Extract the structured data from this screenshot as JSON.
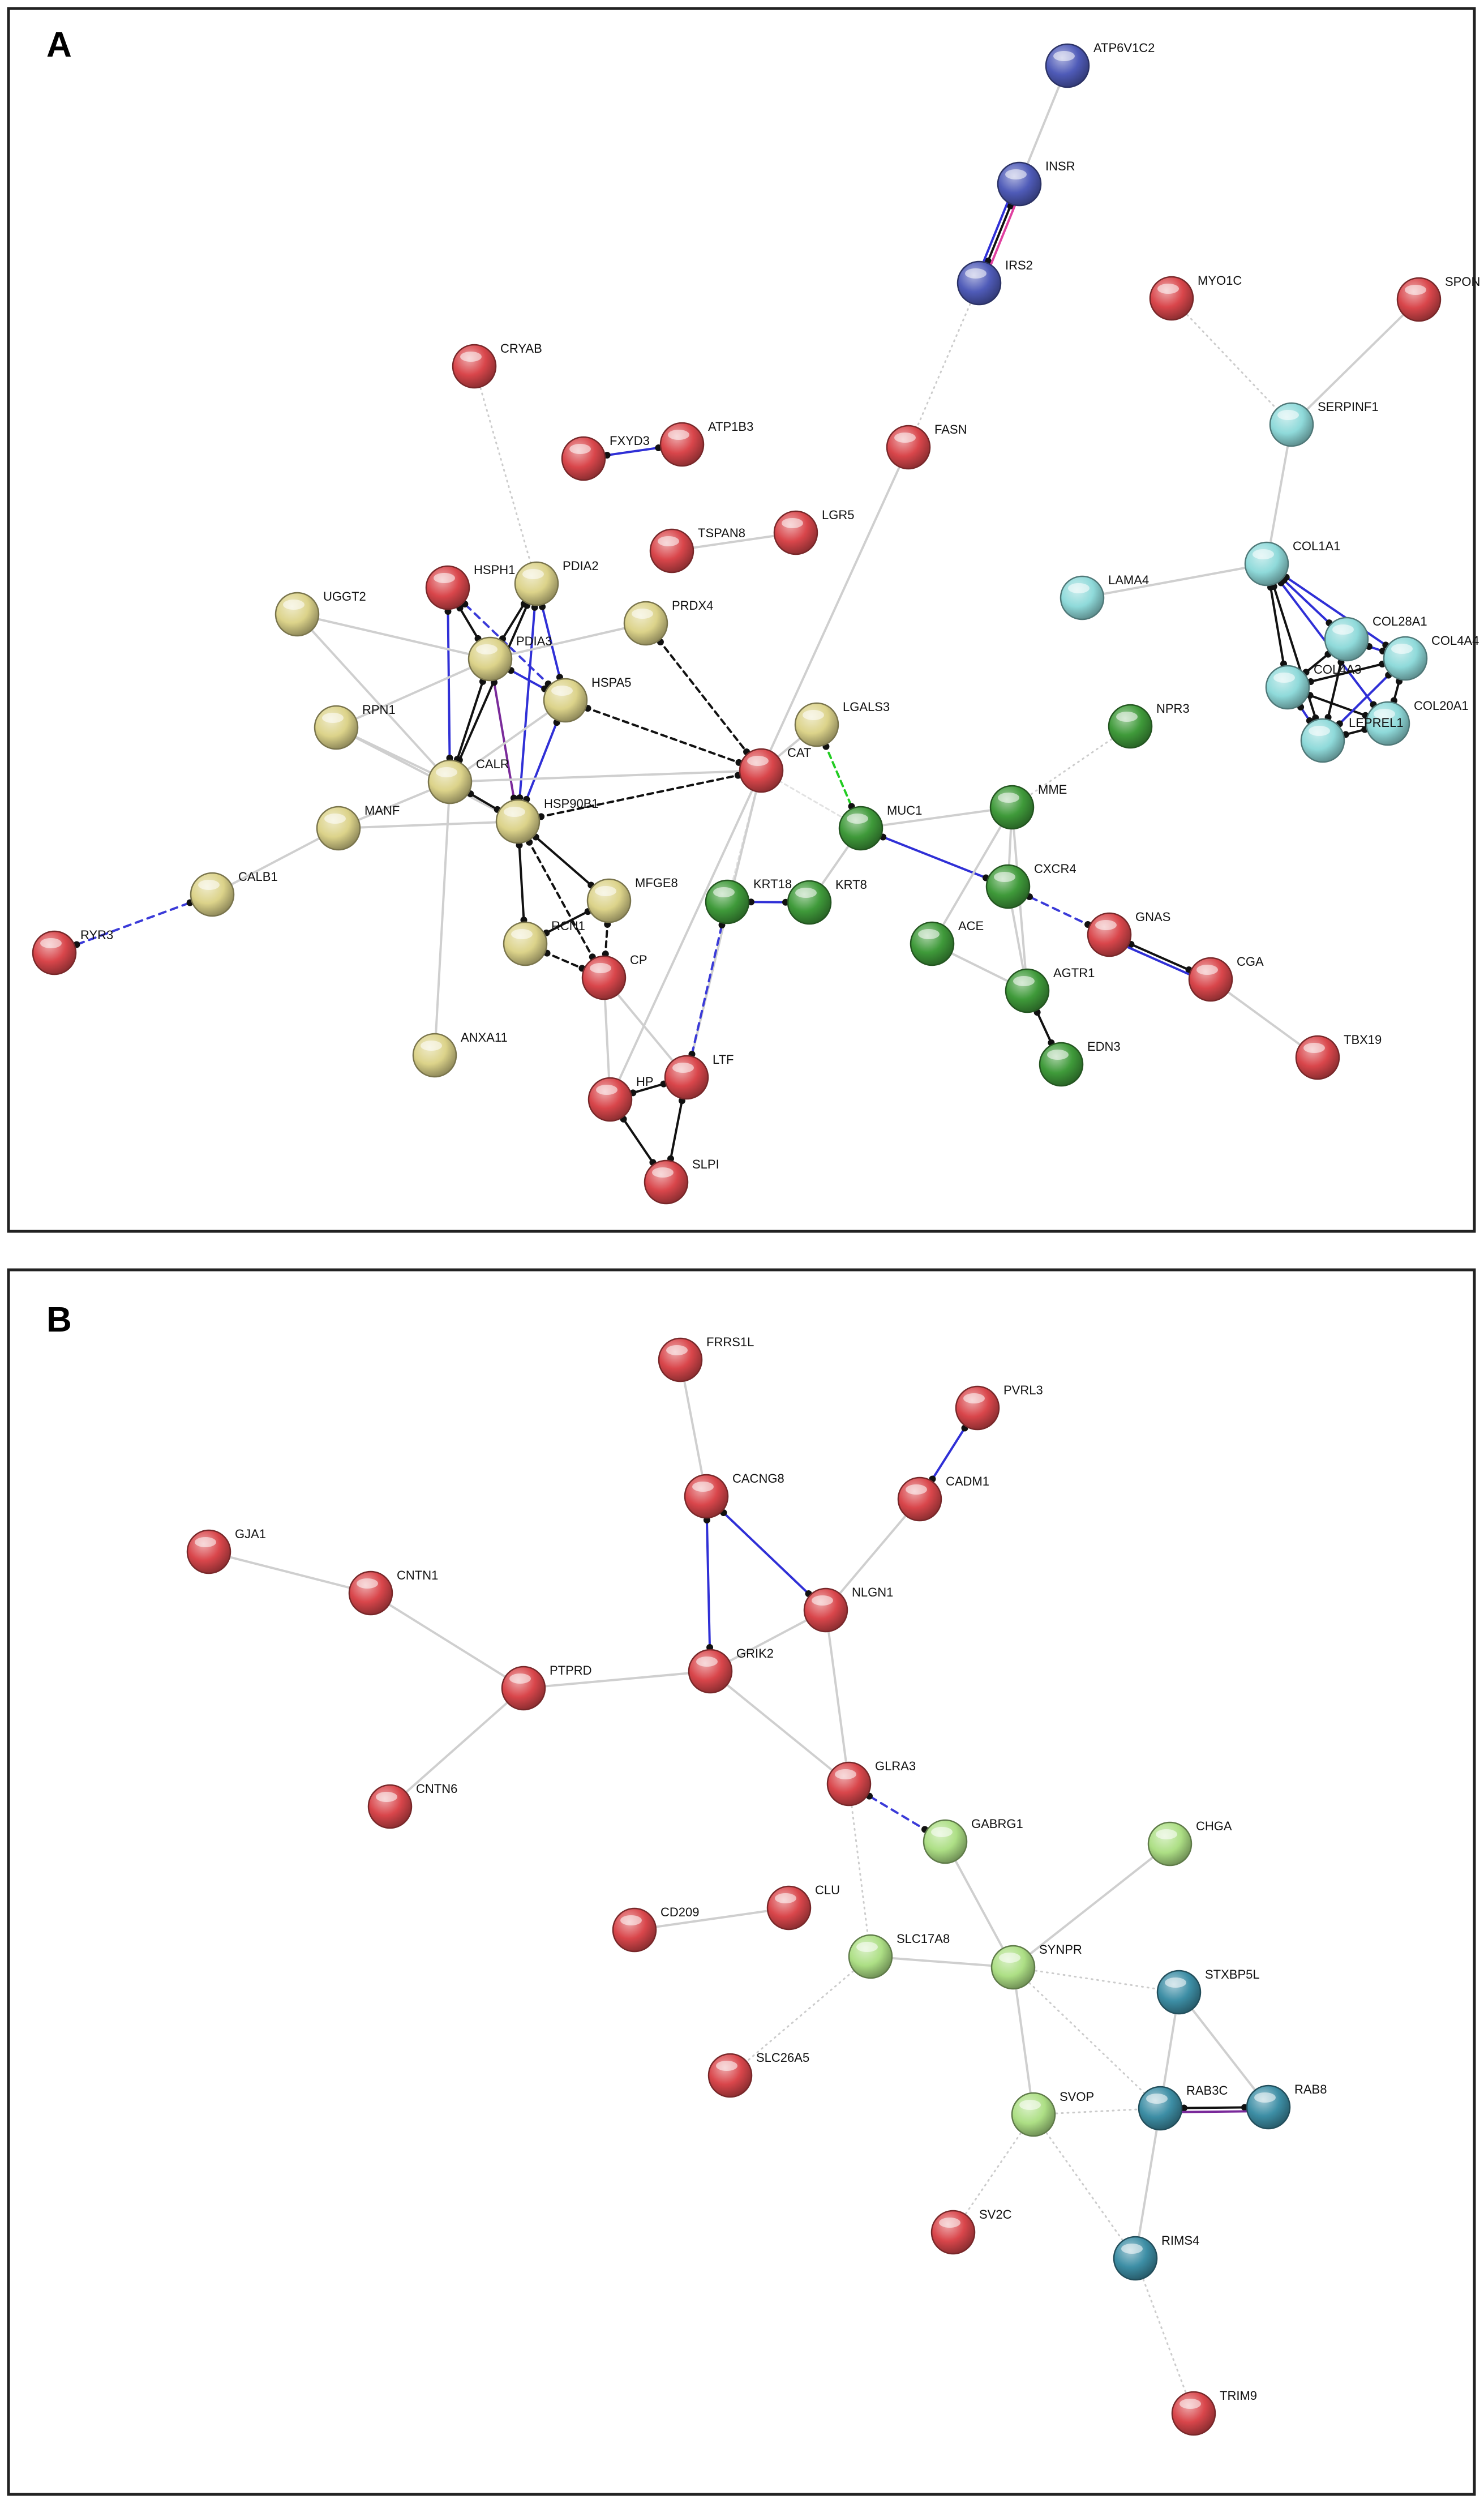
{
  "panels": [
    {
      "label": "A",
      "nodes": [
        {
          "id": "ATP6V1C2",
          "color": "blue"
        },
        {
          "id": "INSR",
          "color": "blue"
        },
        {
          "id": "IRS2",
          "color": "blue"
        },
        {
          "id": "MYO1C",
          "color": "red"
        },
        {
          "id": "SPON",
          "color": "red"
        },
        {
          "id": "SERPINF1",
          "color": "cyan"
        },
        {
          "id": "CRYAB",
          "color": "red"
        },
        {
          "id": "FXYD3",
          "color": "red"
        },
        {
          "id": "ATP1B3",
          "color": "red"
        },
        {
          "id": "FASN",
          "color": "red"
        },
        {
          "id": "TSPAN8",
          "color": "red"
        },
        {
          "id": "LGR5",
          "color": "red"
        },
        {
          "id": "COL1A1",
          "color": "cyan"
        },
        {
          "id": "LAMA4",
          "color": "cyan"
        },
        {
          "id": "COL28A1",
          "color": "cyan"
        },
        {
          "id": "COL4A4",
          "color": "cyan"
        },
        {
          "id": "COL4A3",
          "color": "cyan"
        },
        {
          "id": "COL20A1",
          "color": "cyan"
        },
        {
          "id": "LEPREL1",
          "color": "cyan"
        },
        {
          "id": "HSPH1",
          "color": "red"
        },
        {
          "id": "PDIA2",
          "color": "yellow"
        },
        {
          "id": "UGGT2",
          "color": "yellow"
        },
        {
          "id": "PRDX4",
          "color": "yellow"
        },
        {
          "id": "PDIA3",
          "color": "yellow"
        },
        {
          "id": "HSPA5",
          "color": "yellow"
        },
        {
          "id": "RPN1",
          "color": "yellow"
        },
        {
          "id": "LGALS3",
          "color": "yellow"
        },
        {
          "id": "CAT",
          "color": "red"
        },
        {
          "id": "NPR3",
          "color": "green"
        },
        {
          "id": "CALR",
          "color": "yellow"
        },
        {
          "id": "MME",
          "color": "green"
        },
        {
          "id": "HSP90B1",
          "color": "yellow"
        },
        {
          "id": "MANF",
          "color": "yellow"
        },
        {
          "id": "MUC1",
          "color": "green"
        },
        {
          "id": "CXCR4",
          "color": "green"
        },
        {
          "id": "MFGE8",
          "color": "yellow"
        },
        {
          "id": "KRT18",
          "color": "green"
        },
        {
          "id": "KRT8",
          "color": "green"
        },
        {
          "id": "CALB1",
          "color": "yellow"
        },
        {
          "id": "GNAS",
          "color": "red"
        },
        {
          "id": "ACE",
          "color": "green"
        },
        {
          "id": "RCN1",
          "color": "yellow"
        },
        {
          "id": "CP",
          "color": "red"
        },
        {
          "id": "CGA",
          "color": "red"
        },
        {
          "id": "RYR3",
          "color": "red"
        },
        {
          "id": "AGTR1",
          "color": "green"
        },
        {
          "id": "ANXA11",
          "color": "yellow"
        },
        {
          "id": "EDN3",
          "color": "green"
        },
        {
          "id": "TBX19",
          "color": "red"
        },
        {
          "id": "LTF",
          "color": "red"
        },
        {
          "id": "HP",
          "color": "red"
        },
        {
          "id": "SLPI",
          "color": "red"
        }
      ],
      "edges": [
        [
          "ATP6V1C2",
          "INSR",
          "text"
        ],
        [
          "INSR",
          "IRS2",
          "black"
        ],
        [
          "INSR",
          "IRS2",
          "coexp"
        ],
        [
          "INSR",
          "IRS2",
          "pink"
        ],
        [
          "IRS2",
          "FASN",
          "dot"
        ],
        [
          "MYO1C",
          "SERPINF1",
          "dot"
        ],
        [
          "SPON",
          "SERPINF1",
          "text"
        ],
        [
          "SERPINF1",
          "COL1A1",
          "text"
        ],
        [
          "COL1A1",
          "LAMA4",
          "text"
        ],
        [
          "COL1A1",
          "COL28A1",
          "coexp"
        ],
        [
          "COL1A1",
          "COL4A3",
          "black"
        ],
        [
          "COL1A1",
          "COL4A4",
          "coexp"
        ],
        [
          "COL1A1",
          "LEPREL1",
          "black"
        ],
        [
          "COL1A1",
          "COL20A1",
          "coexp"
        ],
        [
          "COL28A1",
          "COL4A3",
          "black"
        ],
        [
          "COL28A1",
          "COL4A4",
          "coexp"
        ],
        [
          "COL28A1",
          "LEPREL1",
          "black"
        ],
        [
          "COL4A3",
          "COL4A4",
          "black"
        ],
        [
          "COL4A3",
          "LEPREL1",
          "coexp"
        ],
        [
          "COL4A3",
          "COL20A1",
          "black"
        ],
        [
          "COL4A4",
          "COL20A1",
          "black"
        ],
        [
          "COL4A4",
          "LEPREL1",
          "coexp"
        ],
        [
          "COL20A1",
          "LEPREL1",
          "black"
        ],
        [
          "CRYAB",
          "PDIA2",
          "dot"
        ],
        [
          "FXYD3",
          "ATP1B3",
          "coexp"
        ],
        [
          "TSPAN8",
          "LGR5",
          "text"
        ],
        [
          "FASN",
          "CAT",
          "text"
        ],
        [
          "HSPH1",
          "PDIA3",
          "black"
        ],
        [
          "HSPH1",
          "HSPA5",
          "db"
        ],
        [
          "HSPH1",
          "CALR",
          "coexp"
        ],
        [
          "PDIA2",
          "PDIA3",
          "black"
        ],
        [
          "PDIA2",
          "HSPA5",
          "coexp"
        ],
        [
          "PDIA2",
          "CALR",
          "black"
        ],
        [
          "PDIA2",
          "HSP90B1",
          "coexp"
        ],
        [
          "UGGT2",
          "PDIA3",
          "text"
        ],
        [
          "UGGT2",
          "CALR",
          "text"
        ],
        [
          "PRDX4",
          "PDIA3",
          "text"
        ],
        [
          "PRDX4",
          "CAT",
          "bdash"
        ],
        [
          "PDIA3",
          "HSPA5",
          "coexp"
        ],
        [
          "PDIA3",
          "CALR",
          "black"
        ],
        [
          "PDIA3",
          "HSP90B1",
          "purple"
        ],
        [
          "HSPA5",
          "HSP90B1",
          "coexp"
        ],
        [
          "HSPA5",
          "CALR",
          "text"
        ],
        [
          "HSPA5",
          "CAT",
          "bdash"
        ],
        [
          "RPN1",
          "PDIA3",
          "text"
        ],
        [
          "RPN1",
          "CALR",
          "text"
        ],
        [
          "RPN1",
          "HSP90B1",
          "text"
        ],
        [
          "CALR",
          "HSP90B1",
          "black"
        ],
        [
          "CALR",
          "CAT",
          "text"
        ],
        [
          "HSP90B1",
          "CAT",
          "bdash"
        ],
        [
          "MANF",
          "CALR",
          "text"
        ],
        [
          "MANF",
          "HSP90B1",
          "text"
        ],
        [
          "HSP90B1",
          "MFGE8",
          "black"
        ],
        [
          "HSP90B1",
          "RCN1",
          "black"
        ],
        [
          "HSP90B1",
          "CP",
          "bdash"
        ],
        [
          "MFGE8",
          "CP",
          "bdash"
        ],
        [
          "MFGE8",
          "RCN1",
          "black"
        ],
        [
          "RCN1",
          "CP",
          "bdash"
        ],
        [
          "CALB1",
          "MANF",
          "text"
        ],
        [
          "CALB1",
          "RYR3",
          "db"
        ],
        [
          "LGALS3",
          "MUC1",
          "green"
        ],
        [
          "LGALS3",
          "CAT",
          "text"
        ],
        [
          "CAT",
          "MUC1",
          "exp"
        ],
        [
          "CAT",
          "KRT18",
          "exp"
        ],
        [
          "CAT",
          "LTF",
          "text"
        ],
        [
          "CAT",
          "HP",
          "text"
        ],
        [
          "NPR3",
          "MME",
          "dot"
        ],
        [
          "MUC1",
          "KRT8",
          "text"
        ],
        [
          "MUC1",
          "MME",
          "text"
        ],
        [
          "MUC1",
          "CXCR4",
          "coexp"
        ],
        [
          "KRT18",
          "KRT8",
          "coexp"
        ],
        [
          "KRT18",
          "LTF",
          "db"
        ],
        [
          "MME",
          "CXCR4",
          "text"
        ],
        [
          "MME",
          "ACE",
          "text"
        ],
        [
          "MME",
          "AGTR1",
          "text"
        ],
        [
          "CXCR4",
          "GNAS",
          "db"
        ],
        [
          "CXCR4",
          "AGTR1",
          "text"
        ],
        [
          "ACE",
          "AGTR1",
          "text"
        ],
        [
          "AGTR1",
          "EDN3",
          "black"
        ],
        [
          "GNAS",
          "CGA",
          "black"
        ],
        [
          "GNAS",
          "CGA",
          "coexp"
        ],
        [
          "CGA",
          "TBX19",
          "text"
        ],
        [
          "CP",
          "LTF",
          "text"
        ],
        [
          "CP",
          "HP",
          "text"
        ],
        [
          "HP",
          "LTF",
          "black"
        ],
        [
          "HP",
          "SLPI",
          "black"
        ],
        [
          "LTF",
          "SLPI",
          "black"
        ],
        [
          "ANXA11",
          "CALR",
          "text"
        ]
      ]
    },
    {
      "label": "B",
      "nodes": [
        {
          "id": "FRRS1L",
          "color": "red"
        },
        {
          "id": "PVRL3",
          "color": "red"
        },
        {
          "id": "CACNG8",
          "color": "red"
        },
        {
          "id": "CADM1",
          "color": "red"
        },
        {
          "id": "GJA1",
          "color": "red"
        },
        {
          "id": "CNTN1",
          "color": "red"
        },
        {
          "id": "NLGN1",
          "color": "red"
        },
        {
          "id": "GRIK2",
          "color": "red"
        },
        {
          "id": "PTPRD",
          "color": "red"
        },
        {
          "id": "GLRA3",
          "color": "red"
        },
        {
          "id": "CNTN6",
          "color": "red"
        },
        {
          "id": "GABRG1",
          "color": "lightgreen"
        },
        {
          "id": "CHGA",
          "color": "lightgreen"
        },
        {
          "id": "CLU",
          "color": "red"
        },
        {
          "id": "CD209",
          "color": "red"
        },
        {
          "id": "SLC17A8",
          "color": "lightgreen"
        },
        {
          "id": "SYNPR",
          "color": "lightgreen"
        },
        {
          "id": "STXBP5L",
          "color": "teal"
        },
        {
          "id": "SLC26A5",
          "color": "red"
        },
        {
          "id": "SVOP",
          "color": "lightgreen"
        },
        {
          "id": "RAB3C",
          "color": "teal"
        },
        {
          "id": "RAB8",
          "color": "teal"
        },
        {
          "id": "SV2C",
          "color": "red"
        },
        {
          "id": "RIMS4",
          "color": "teal"
        },
        {
          "id": "TRIM9",
          "color": "red"
        }
      ],
      "edges": [
        [
          "FRRS1L",
          "CACNG8",
          "text"
        ],
        [
          "PVRL3",
          "CADM1",
          "coexp"
        ],
        [
          "CADM1",
          "NLGN1",
          "text"
        ],
        [
          "CACNG8",
          "NLGN1",
          "coexp"
        ],
        [
          "CACNG8",
          "GRIK2",
          "coexp"
        ],
        [
          "NLGN1",
          "GRIK2",
          "text"
        ],
        [
          "NLGN1",
          "GLRA3",
          "text"
        ],
        [
          "GRIK2",
          "PTPRD",
          "text"
        ],
        [
          "GRIK2",
          "GLRA3",
          "text"
        ],
        [
          "GJA1",
          "CNTN1",
          "text"
        ],
        [
          "CNTN1",
          "PTPRD",
          "text"
        ],
        [
          "PTPRD",
          "CNTN6",
          "text"
        ],
        [
          "GLRA3",
          "GABRG1",
          "db"
        ],
        [
          "GLRA3",
          "SLC17A8",
          "dot"
        ],
        [
          "GABRG1",
          "SYNPR",
          "text"
        ],
        [
          "CHGA",
          "SYNPR",
          "text"
        ],
        [
          "CD209",
          "CLU",
          "text"
        ],
        [
          "SLC17A8",
          "SYNPR",
          "text"
        ],
        [
          "SLC17A8",
          "SLC26A5",
          "dot"
        ],
        [
          "SYNPR",
          "SVOP",
          "text"
        ],
        [
          "SYNPR",
          "STXBP5L",
          "dot"
        ],
        [
          "SYNPR",
          "RAB3C",
          "dot"
        ],
        [
          "STXBP5L",
          "RAB3C",
          "text"
        ],
        [
          "STXBP5L",
          "RAB8",
          "text"
        ],
        [
          "RAB3C",
          "RAB8",
          "black"
        ],
        [
          "RAB3C",
          "RAB8",
          "purple"
        ],
        [
          "SVOP",
          "RAB3C",
          "dot"
        ],
        [
          "SVOP",
          "SV2C",
          "dot"
        ],
        [
          "SVOP",
          "RIMS4",
          "dot"
        ],
        [
          "RAB3C",
          "RIMS4",
          "text"
        ],
        [
          "RIMS4",
          "TRIM9",
          "dot"
        ]
      ]
    }
  ],
  "palette": {
    "red": "#d9464b",
    "yellow": "#dcd38a",
    "green": "#3f9a3a",
    "blue": "#4f5bb8",
    "cyan": "#8fdada",
    "lightgreen": "#addf85",
    "teal": "#3d8ea5"
  }
}
